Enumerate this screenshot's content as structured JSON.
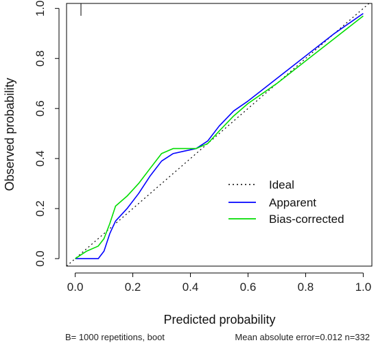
{
  "chart_data": {
    "type": "line",
    "title": "",
    "xlabel": "Predicted probability",
    "ylabel": "Observed probability",
    "xlim": [
      -0.03,
      1.03
    ],
    "ylim": [
      -0.03,
      1.02
    ],
    "x_ticks": [
      0.0,
      0.2,
      0.4,
      0.6,
      0.8,
      1.0
    ],
    "x_tick_labels": [
      "0.0",
      "0.2",
      "0.4",
      "0.6",
      "0.8",
      "1.0"
    ],
    "y_ticks": [
      0.0,
      0.2,
      0.4,
      0.6,
      0.8,
      1.0
    ],
    "y_tick_labels": [
      "0.0",
      "0.2",
      "0.4",
      "0.6",
      "0.8",
      "1.0"
    ],
    "grid": false,
    "legend_position": "lower-right",
    "series": [
      {
        "name": "Ideal",
        "style": "dotted",
        "color": "#000000",
        "x": [
          -0.03,
          1.03
        ],
        "y": [
          -0.03,
          1.03
        ]
      },
      {
        "name": "Apparent",
        "style": "solid",
        "color": "#0000ff",
        "x": [
          0.0,
          0.04,
          0.08,
          0.1,
          0.12,
          0.14,
          0.18,
          0.22,
          0.26,
          0.3,
          0.34,
          0.38,
          0.42,
          0.46,
          0.5,
          0.55,
          0.6,
          0.7,
          0.8,
          0.9,
          1.0
        ],
        "y": [
          0.0,
          0.0,
          0.0,
          0.03,
          0.1,
          0.15,
          0.2,
          0.26,
          0.33,
          0.39,
          0.42,
          0.43,
          0.44,
          0.47,
          0.53,
          0.59,
          0.63,
          0.72,
          0.81,
          0.9,
          0.98
        ]
      },
      {
        "name": "Bias-corrected",
        "style": "solid",
        "color": "#00dd00",
        "x": [
          0.0,
          0.04,
          0.08,
          0.1,
          0.12,
          0.14,
          0.18,
          0.22,
          0.26,
          0.3,
          0.34,
          0.38,
          0.42,
          0.46,
          0.5,
          0.55,
          0.6,
          0.7,
          0.8,
          0.9,
          1.0
        ],
        "y": [
          0.0,
          0.03,
          0.05,
          0.08,
          0.14,
          0.21,
          0.25,
          0.3,
          0.36,
          0.42,
          0.44,
          0.44,
          0.44,
          0.46,
          0.51,
          0.57,
          0.62,
          0.7,
          0.79,
          0.88,
          0.97
        ]
      }
    ],
    "rug": [
      0.02
    ],
    "footer": {
      "left": "B= 1000 repetitions, boot",
      "right": "Mean absolute error=0.012 n=332"
    }
  }
}
